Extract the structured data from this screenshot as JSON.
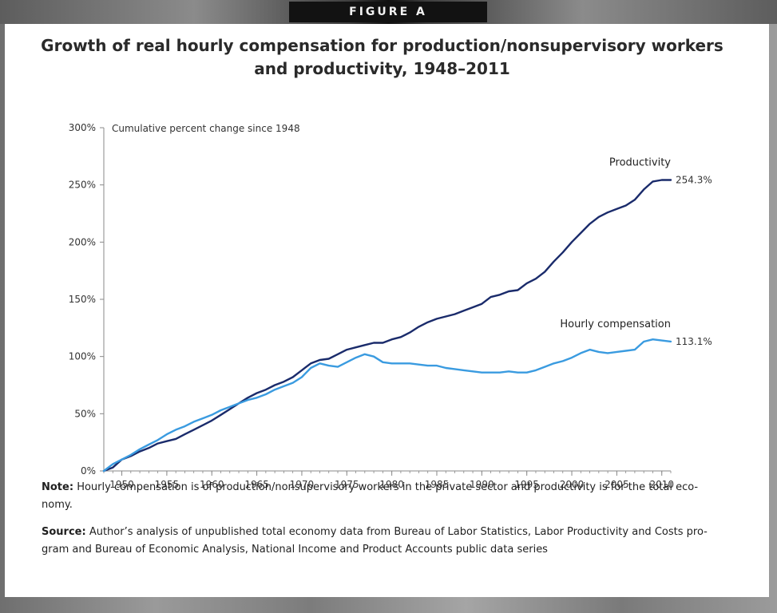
{
  "banner": {
    "figure_label": "FIGURE A"
  },
  "colors": {
    "productivity": "#1a2b6b",
    "hourly_compensation": "#3a9be0",
    "axis": "#888888",
    "text": "#333333"
  },
  "chart_data": {
    "type": "line",
    "title": "Growth of real hourly compensation for production/nonsupervisory workers and productivity, 1948–2011",
    "ylabel": "Cumulative percent change since 1948",
    "xlabel": "",
    "xlim": [
      1948,
      2011
    ],
    "ylim": [
      0,
      300
    ],
    "y_ticks": [
      0,
      50,
      100,
      150,
      200,
      250,
      300
    ],
    "y_tick_labels": [
      "0%",
      "50%",
      "100%",
      "150%",
      "200%",
      "250%",
      "300%"
    ],
    "x_ticks": [
      1950,
      1955,
      1960,
      1965,
      1970,
      1975,
      1980,
      1985,
      1990,
      1995,
      2000,
      2005,
      2010
    ],
    "x_tick_labels": [
      "1950",
      "1955",
      "1960",
      "1965",
      "1970",
      "1975",
      "1980",
      "1985",
      "1990",
      "1995",
      "2000",
      "2005",
      "2010"
    ],
    "grid": false,
    "series": [
      {
        "name": "Productivity",
        "end_label": "254.3%",
        "x": [
          1948,
          1949,
          1950,
          1951,
          1952,
          1953,
          1954,
          1955,
          1956,
          1957,
          1958,
          1959,
          1960,
          1961,
          1962,
          1963,
          1964,
          1965,
          1966,
          1967,
          1968,
          1969,
          1970,
          1971,
          1972,
          1973,
          1974,
          1975,
          1976,
          1977,
          1978,
          1979,
          1980,
          1981,
          1982,
          1983,
          1984,
          1985,
          1986,
          1987,
          1988,
          1989,
          1990,
          1991,
          1992,
          1993,
          1994,
          1995,
          1996,
          1997,
          1998,
          1999,
          2000,
          2001,
          2002,
          2003,
          2004,
          2005,
          2006,
          2007,
          2008,
          2009,
          2010,
          2011
        ],
        "values": [
          0,
          3,
          10,
          13,
          17,
          20,
          24,
          26,
          28,
          32,
          36,
          40,
          44,
          49,
          54,
          59,
          64,
          68,
          71,
          75,
          78,
          82,
          88,
          94,
          97,
          98,
          102,
          106,
          108,
          110,
          112,
          112,
          115,
          117,
          121,
          126,
          130,
          133,
          135,
          137,
          140,
          143,
          146,
          152,
          154,
          157,
          158,
          164,
          168,
          174,
          183,
          191,
          200,
          208,
          216,
          222,
          226,
          229,
          232,
          237,
          246,
          253,
          254.3,
          254.3
        ]
      },
      {
        "name": "Hourly compensation",
        "end_label": "113.1%",
        "x": [
          1948,
          1949,
          1950,
          1951,
          1952,
          1953,
          1954,
          1955,
          1956,
          1957,
          1958,
          1959,
          1960,
          1961,
          1962,
          1963,
          1964,
          1965,
          1966,
          1967,
          1968,
          1969,
          1970,
          1971,
          1972,
          1973,
          1974,
          1975,
          1976,
          1977,
          1978,
          1979,
          1980,
          1981,
          1982,
          1983,
          1984,
          1985,
          1986,
          1987,
          1988,
          1989,
          1990,
          1991,
          1992,
          1993,
          1994,
          1995,
          1996,
          1997,
          1998,
          1999,
          2000,
          2001,
          2002,
          2003,
          2004,
          2005,
          2006,
          2007,
          2008,
          2009,
          2010,
          2011
        ],
        "values": [
          0,
          6,
          10,
          14,
          19,
          23,
          27,
          32,
          36,
          39,
          43,
          46,
          49,
          53,
          56,
          59,
          62,
          64,
          67,
          71,
          74,
          77,
          82,
          90,
          94,
          92,
          91,
          95,
          99,
          102,
          100,
          95,
          94,
          94,
          94,
          93,
          92,
          92,
          90,
          89,
          88,
          87,
          86,
          86,
          86,
          87,
          86,
          86,
          88,
          91,
          94,
          96,
          99,
          103,
          106,
          104,
          103,
          104,
          105,
          106,
          113,
          115,
          114,
          113.1
        ]
      }
    ]
  },
  "footnotes": {
    "note_label": "Note:",
    "note_text": "Hourly compensation is of production/nonsupervisory workers in the private sector and productivity is for the total eco-nomy.",
    "source_label": "Source:",
    "source_text": "Author’s analysis of unpublished total economy data from Bureau of Labor Statistics, Labor Productivity and Costs pro-gram and Bureau of Economic Analysis, National Income and Product Accounts public data series"
  }
}
